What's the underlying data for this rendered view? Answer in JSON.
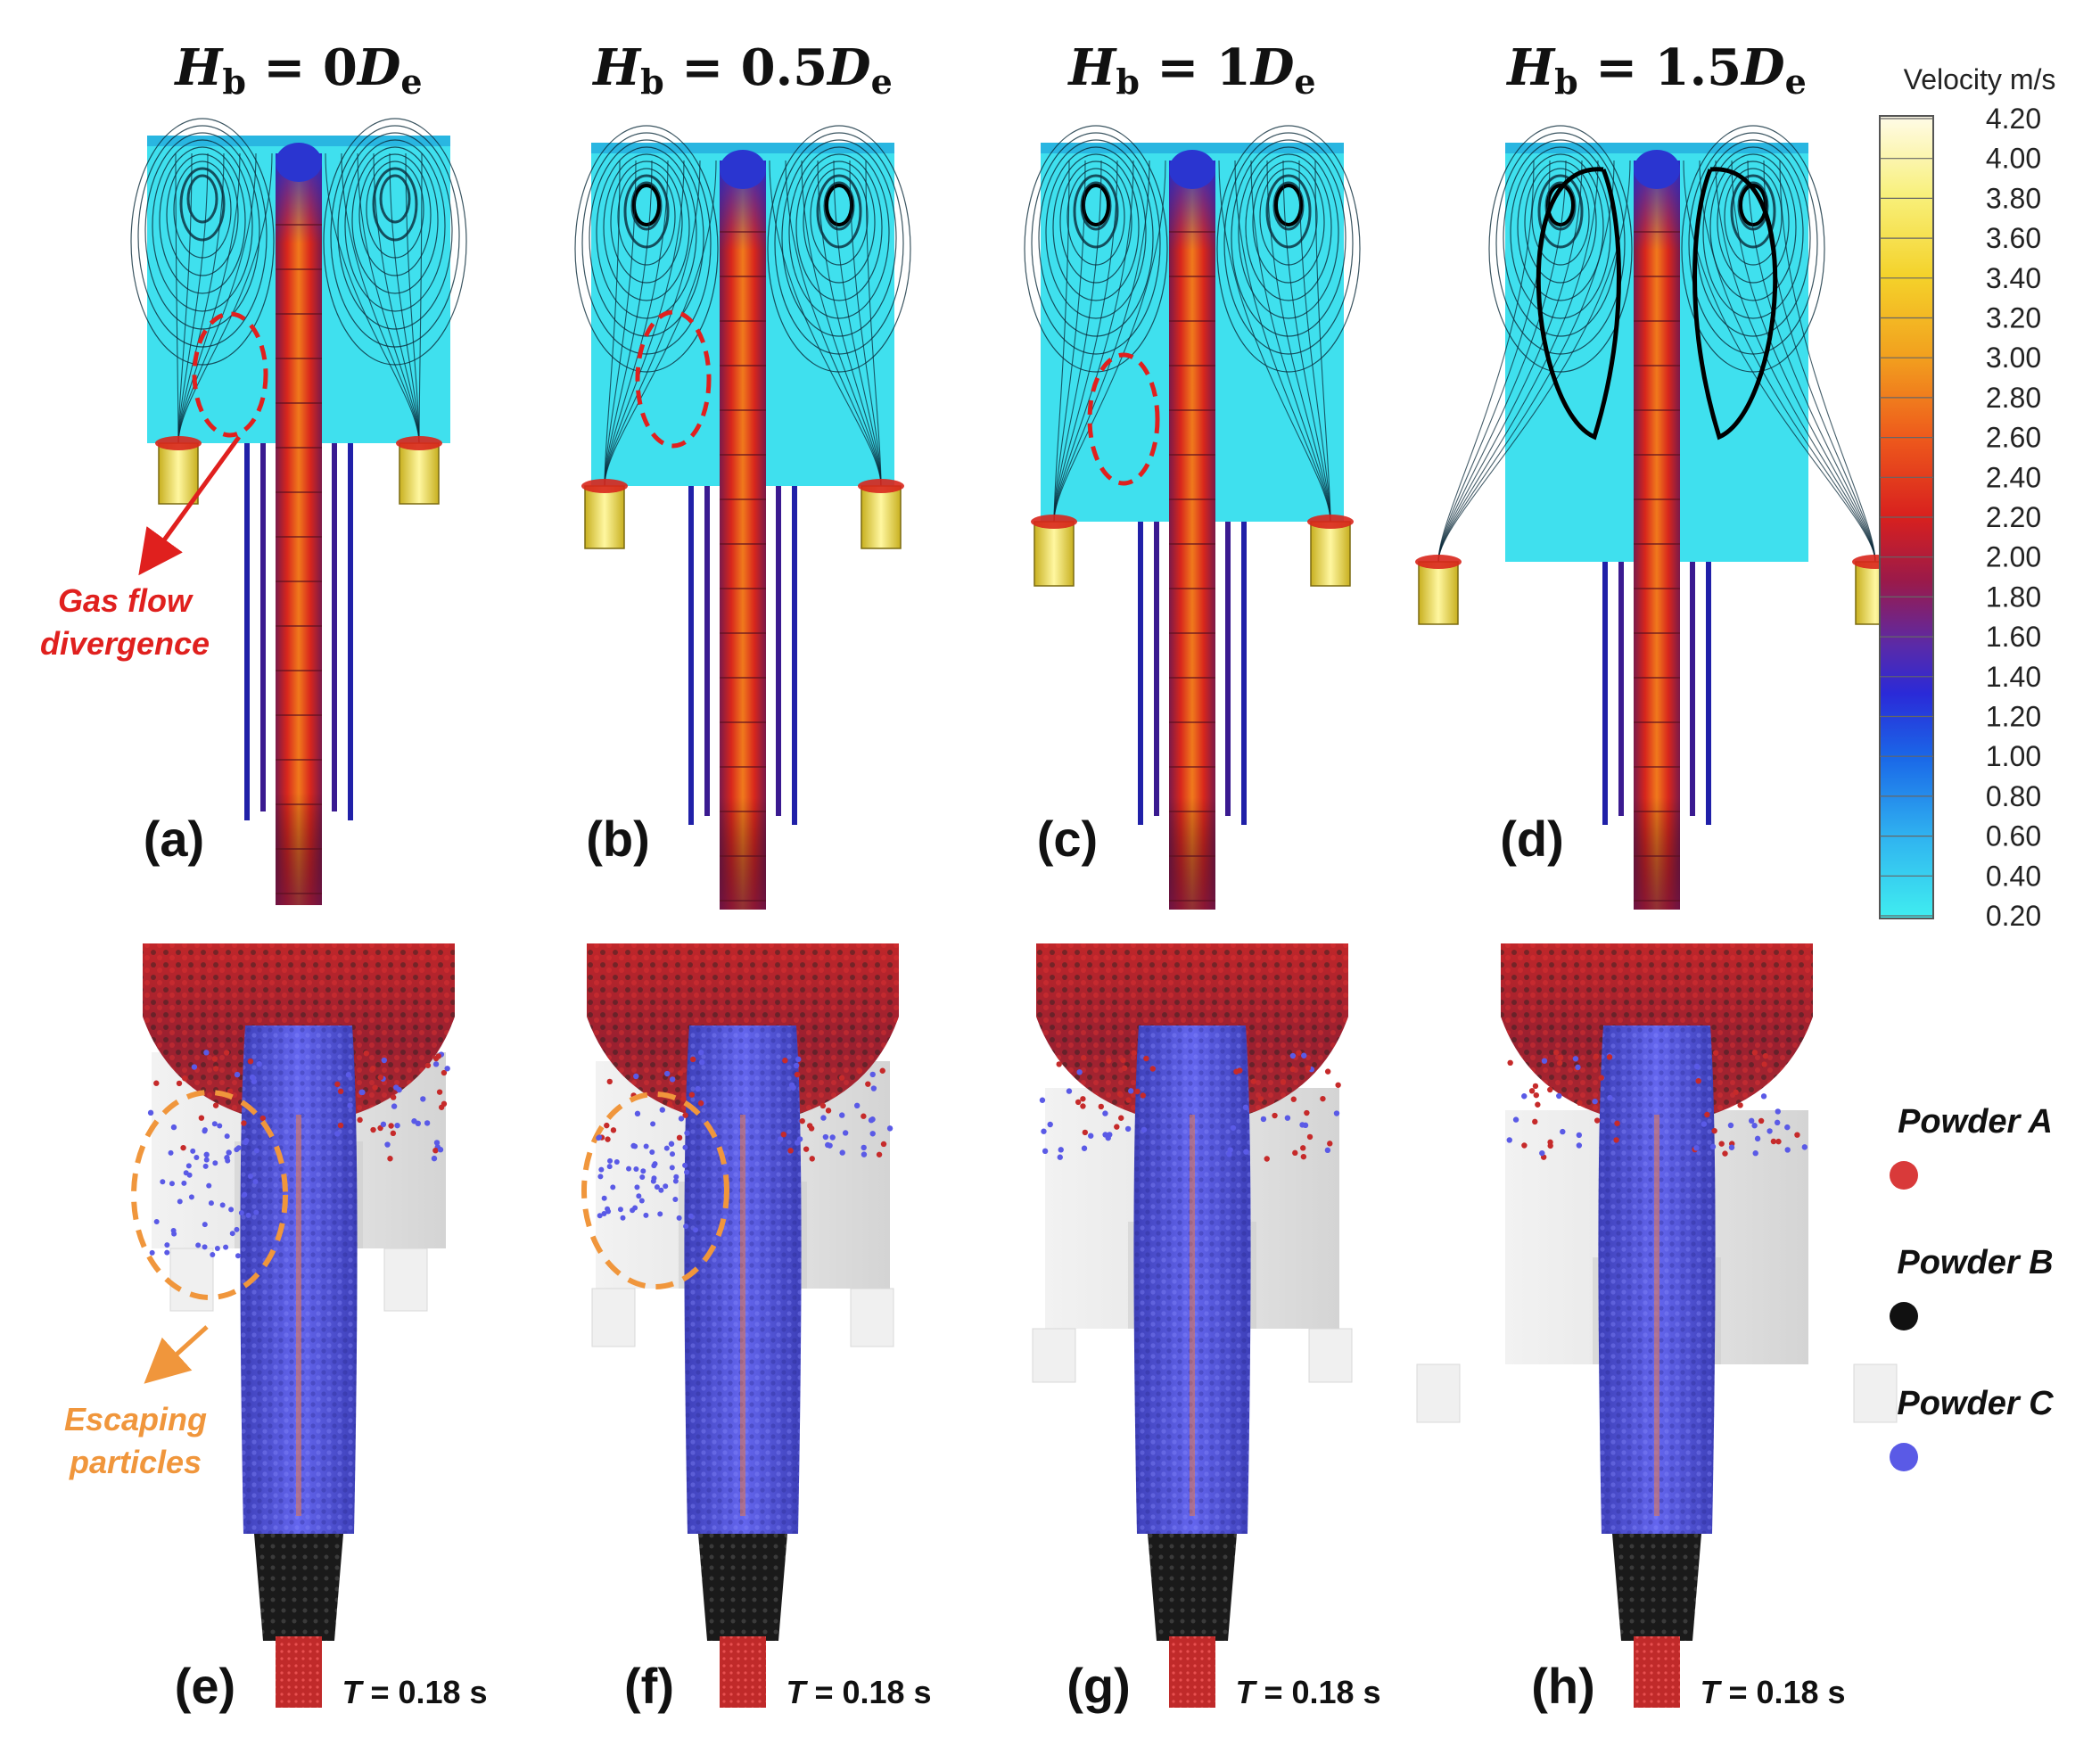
{
  "headers": [
    {
      "var": "H",
      "sub": "b",
      "eq": " = ",
      "num": "0",
      "D": "D",
      "dsub": "e"
    },
    {
      "var": "H",
      "sub": "b",
      "eq": " = ",
      "num": "0.5",
      "D": "D",
      "dsub": "e"
    },
    {
      "var": "H",
      "sub": "b",
      "eq": " = ",
      "num": "1",
      "D": "D",
      "dsub": "e"
    },
    {
      "var": "H",
      "sub": "b",
      "eq": " = ",
      "num": "1.5",
      "D": "D",
      "dsub": "e"
    }
  ],
  "top_labels": [
    "(a)",
    "(b)",
    "(c)",
    "(d)"
  ],
  "bottom_labels": [
    "(e)",
    "(f)",
    "(g)",
    "(h)"
  ],
  "time_label": {
    "var": "T",
    "rest": " = 0.18 s"
  },
  "annotations": {
    "gas_flow": [
      "Gas flow",
      "divergence"
    ],
    "escaping": [
      "Escaping",
      "particles"
    ]
  },
  "colorbar": {
    "title": "Velocity m/s",
    "ticks": [
      "4.20",
      "4.00",
      "3.80",
      "3.60",
      "3.40",
      "3.20",
      "3.00",
      "2.80",
      "2.60",
      "2.40",
      "2.20",
      "2.00",
      "1.80",
      "1.60",
      "1.40",
      "1.20",
      "1.00",
      "0.80",
      "0.60",
      "0.40",
      "0.20"
    ]
  },
  "legend": [
    {
      "label": "Powder A",
      "color": "#d93a3a"
    },
    {
      "label": "Powder B",
      "color": "#111111"
    },
    {
      "label": "Powder C",
      "color": "#5a5ae6"
    }
  ],
  "colors": {
    "annotation_red": "#e0201e",
    "annotation_orange": "#f0963c",
    "gas_cyan": "#3fe0ee"
  }
}
